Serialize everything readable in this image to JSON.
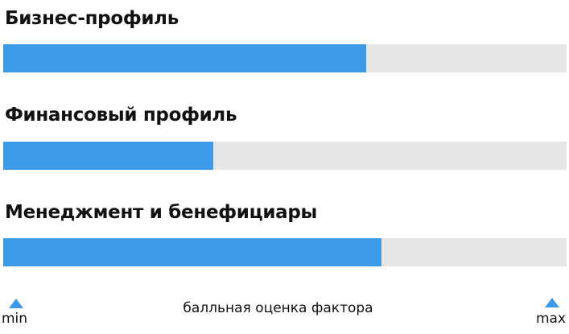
{
  "chart_data": {
    "type": "bar",
    "orientation": "horizontal",
    "categories": [
      "Бизнес-профиль",
      "Финансовый профиль",
      "Менеджмент и бенефициары"
    ],
    "values": [
      0.644,
      0.373,
      0.671
    ],
    "xlim": [
      0,
      1
    ],
    "scale": {
      "min_label": "min",
      "max_label": "max",
      "axis_label": "балльная оценка фактора"
    },
    "colors": {
      "fill": "#3d9ae8",
      "track": "#e6e6e6",
      "marker": "#3d9ae8"
    },
    "grid": false
  }
}
